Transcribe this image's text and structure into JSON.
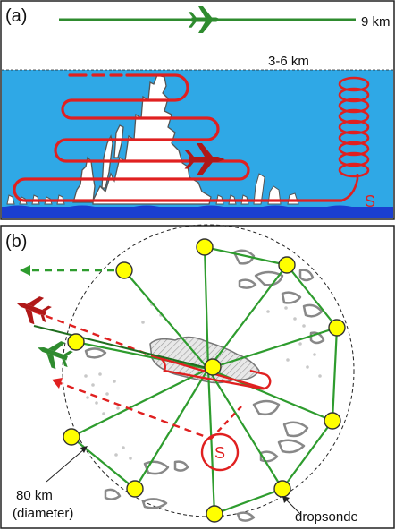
{
  "panel_a": {
    "label": "(a)",
    "altitude_top": "9 km",
    "altitude_mid": "3-6 km",
    "spiral_label": "S",
    "colors": {
      "sky": "#2fa8e6",
      "ocean": "#1a3fd0",
      "flight": "#e02020",
      "aircraft_green": "#2e8b2e",
      "aircraft_red": "#b01818"
    }
  },
  "panel_b": {
    "label": "(b)",
    "spiral_label": "S",
    "diameter_label_line1": "80 km",
    "diameter_label_line2": "(diameter)",
    "dropsonde_label": "dropsonde",
    "colors": {
      "sonde_fill": "#ffff00",
      "spoke": "#2e9c2e",
      "cloud_outline": "#888888"
    }
  }
}
